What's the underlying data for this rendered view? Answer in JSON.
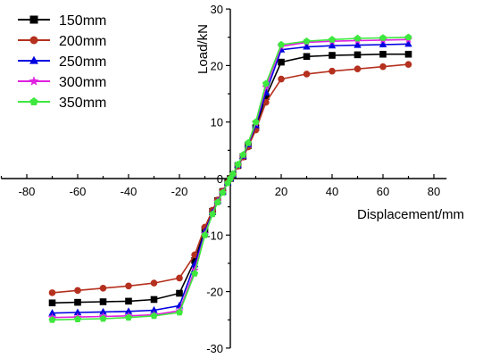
{
  "chart_data": {
    "type": "line",
    "xlabel": "Displacement/mm",
    "ylabel": "Load/kN",
    "xlim": [
      -90,
      85
    ],
    "ylim": [
      -30,
      30
    ],
    "xticks": [
      -80,
      -60,
      -40,
      -20,
      0,
      20,
      40,
      60,
      80
    ],
    "yticks": [
      -30,
      -20,
      -10,
      0,
      10,
      20,
      30
    ],
    "x": [
      -70,
      -60,
      -50,
      -40,
      -30,
      -20,
      -14,
      -10,
      -7,
      -5,
      -3,
      -1,
      0,
      1,
      3,
      5,
      7,
      10,
      14,
      20,
      30,
      40,
      50,
      60,
      70
    ],
    "legend_position": "top-left",
    "series": [
      {
        "name": "150mm",
        "color": "#000000",
        "marker": "square",
        "values": [
          -22.0,
          -21.9,
          -21.8,
          -21.7,
          -21.4,
          -20.3,
          -14.5,
          -9.0,
          -5.8,
          -3.9,
          -2.3,
          -0.7,
          0,
          0.7,
          2.3,
          3.9,
          5.8,
          9.0,
          14.5,
          20.6,
          21.6,
          21.8,
          21.9,
          22.0,
          22.0
        ]
      },
      {
        "name": "200mm",
        "color": "#b5301e",
        "marker": "circle",
        "values": [
          -20.2,
          -19.8,
          -19.4,
          -19.0,
          -18.5,
          -17.6,
          -13.5,
          -8.6,
          -5.6,
          -3.8,
          -2.2,
          -0.7,
          0,
          0.7,
          2.2,
          3.8,
          5.6,
          8.6,
          13.5,
          17.6,
          18.5,
          19.0,
          19.4,
          19.8,
          20.2
        ]
      },
      {
        "name": "250mm",
        "color": "#0000e0",
        "marker": "triangle",
        "values": [
          -23.8,
          -23.7,
          -23.6,
          -23.5,
          -23.3,
          -22.5,
          -15.2,
          -9.4,
          -6.0,
          -4.0,
          -2.4,
          -0.7,
          0,
          0.7,
          2.4,
          4.0,
          6.0,
          9.4,
          15.2,
          22.8,
          23.3,
          23.5,
          23.6,
          23.7,
          23.8
        ]
      },
      {
        "name": "300mm",
        "color": "#e020e0",
        "marker": "star",
        "values": [
          -24.6,
          -24.5,
          -24.4,
          -24.3,
          -24.1,
          -23.4,
          -16.2,
          -9.8,
          -6.2,
          -4.1,
          -2.4,
          -0.8,
          0,
          0.8,
          2.4,
          4.1,
          6.2,
          9.8,
          16.2,
          23.4,
          24.1,
          24.3,
          24.4,
          24.5,
          24.6
        ]
      },
      {
        "name": "350mm",
        "color": "#3ee83e",
        "marker": "pentagon",
        "values": [
          -25.0,
          -24.9,
          -24.8,
          -24.6,
          -24.3,
          -23.7,
          -16.8,
          -10.0,
          -6.3,
          -4.2,
          -2.5,
          -0.8,
          0,
          0.8,
          2.5,
          4.2,
          6.3,
          10.0,
          16.8,
          23.7,
          24.3,
          24.6,
          24.8,
          24.9,
          25.0
        ]
      }
    ]
  }
}
